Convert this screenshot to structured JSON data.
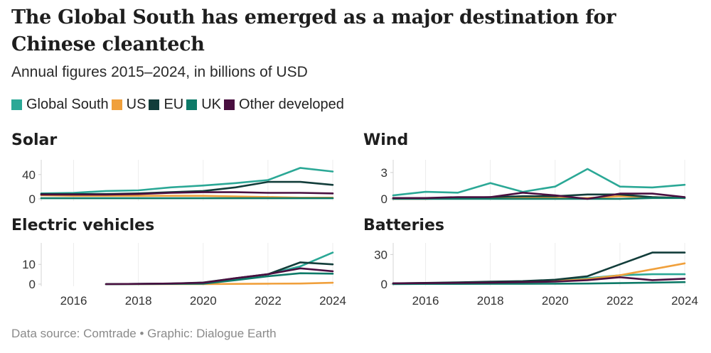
{
  "header": {
    "title": "The Global South has emerged as a major destination for Chinese cleantech",
    "subtitle": "Annual figures 2015–2024, in billions of USD"
  },
  "legend": [
    {
      "label": "Global South",
      "color": "#2ba896"
    },
    {
      "label": "US",
      "color": "#f0a03c"
    },
    {
      "label": "EU",
      "color": "#123d3a"
    },
    {
      "label": "UK",
      "color": "#0e7a68"
    },
    {
      "label": "Other developed",
      "color": "#4a0f40"
    }
  ],
  "footer": "Data source: Comtrade • Graphic: Dialogue Earth",
  "chart_data": [
    {
      "type": "line",
      "title": "Solar",
      "x": [
        2015,
        2016,
        2017,
        2018,
        2019,
        2020,
        2021,
        2022,
        2023,
        2024
      ],
      "ylim": [
        0,
        55
      ],
      "yticks": [
        "0",
        "40"
      ],
      "series": [
        {
          "name": "Global South",
          "values": [
            9,
            10,
            13,
            14,
            19,
            22,
            26,
            31,
            51,
            45
          ]
        },
        {
          "name": "US",
          "values": [
            6,
            5,
            5,
            5,
            5,
            5,
            4,
            3,
            2,
            2
          ]
        },
        {
          "name": "EU",
          "values": [
            8,
            8,
            8,
            9,
            11,
            13,
            19,
            28,
            28,
            23
          ]
        },
        {
          "name": "UK",
          "values": [
            1,
            1,
            1,
            1,
            1,
            1,
            1,
            1,
            1,
            1
          ]
        },
        {
          "name": "Other developed",
          "values": [
            7,
            7,
            7,
            8,
            10,
            11,
            11,
            10,
            10,
            9
          ]
        }
      ]
    },
    {
      "type": "line",
      "title": "Wind",
      "x": [
        2015,
        2016,
        2017,
        2018,
        2019,
        2020,
        2021,
        2022,
        2023,
        2024
      ],
      "ylim": [
        0,
        3.8
      ],
      "yticks": [
        "0",
        "3"
      ],
      "series": [
        {
          "name": "Global South",
          "values": [
            0.4,
            0.8,
            0.7,
            1.8,
            0.8,
            1.4,
            3.4,
            1.4,
            1.3,
            1.6
          ]
        },
        {
          "name": "US",
          "values": [
            0.0,
            0.0,
            0.1,
            0.1,
            0.1,
            0.1,
            0.1,
            0.3,
            0.2,
            0.1
          ]
        },
        {
          "name": "EU",
          "values": [
            0.1,
            0.1,
            0.1,
            0.2,
            0.3,
            0.3,
            0.5,
            0.5,
            0.2,
            0.1
          ]
        },
        {
          "name": "UK",
          "values": [
            0.0,
            0.0,
            0.0,
            0.0,
            0.0,
            0.0,
            0.0,
            0.0,
            0.1,
            0.1
          ]
        },
        {
          "name": "Other developed",
          "values": [
            0.1,
            0.1,
            0.2,
            0.2,
            0.7,
            0.4,
            0.0,
            0.6,
            0.6,
            0.2
          ]
        }
      ]
    },
    {
      "type": "line",
      "title": "Electric vehicles",
      "x": [
        2015,
        2016,
        2017,
        2018,
        2019,
        2020,
        2021,
        2022,
        2023,
        2024
      ],
      "ylim": [
        0,
        18
      ],
      "yticks": [
        "0",
        "10"
      ],
      "series": [
        {
          "name": "Global South",
          "values": [
            null,
            null,
            0,
            0.1,
            0.2,
            0.3,
            2.5,
            5,
            9,
            16
          ]
        },
        {
          "name": "US",
          "values": [
            null,
            null,
            0,
            0,
            0,
            0,
            0.1,
            0.2,
            0.3,
            0.7
          ]
        },
        {
          "name": "EU",
          "values": [
            null,
            null,
            0,
            0.1,
            0.3,
            0.8,
            3,
            5,
            11,
            10
          ]
        },
        {
          "name": "UK",
          "values": [
            null,
            null,
            0,
            0,
            0.1,
            0.2,
            2,
            4,
            5.5,
            5.3
          ]
        },
        {
          "name": "Other developed",
          "values": [
            null,
            null,
            0,
            0.1,
            0.3,
            0.7,
            3,
            5,
            8,
            6.5
          ]
        }
      ]
    },
    {
      "type": "line",
      "title": "Batteries",
      "x": [
        2015,
        2016,
        2017,
        2018,
        2019,
        2020,
        2021,
        2022,
        2023,
        2024
      ],
      "ylim": [
        0,
        36
      ],
      "yticks": [
        "0",
        "30"
      ],
      "series": [
        {
          "name": "Global South",
          "values": [
            0.5,
            1,
            1.5,
            2,
            2.5,
            3,
            6,
            9,
            10,
            10
          ]
        },
        {
          "name": "US",
          "values": [
            0.3,
            0.5,
            1,
            1.5,
            2,
            3,
            5,
            9,
            15,
            21
          ]
        },
        {
          "name": "EU",
          "values": [
            0.8,
            1.2,
            1.8,
            2.5,
            3,
            4.5,
            8,
            20,
            32,
            32
          ]
        },
        {
          "name": "UK",
          "values": [
            0.1,
            0.2,
            0.2,
            0.3,
            0.3,
            0.4,
            0.6,
            1,
            1.5,
            2
          ]
        },
        {
          "name": "Other developed",
          "values": [
            0.8,
            1,
            1.3,
            1.5,
            2,
            2.5,
            4,
            7,
            4,
            5.5
          ]
        }
      ]
    }
  ],
  "x_axis_labels": [
    "2016",
    "2018",
    "2020",
    "2022",
    "2024"
  ]
}
